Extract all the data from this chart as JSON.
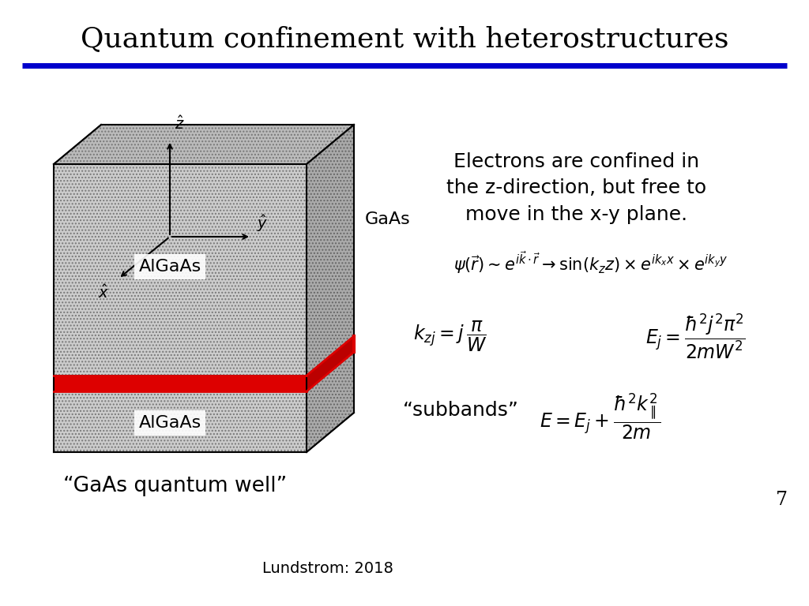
{
  "title": "Quantum confinement with heterostructures",
  "title_fontsize": 26,
  "blue_line_color": "#0000cc",
  "red_color": "#dd0000",
  "red_side_color": "#bb0000",
  "background_color": "#ffffff",
  "hatch_color": "#888888",
  "text_gaas": "GaAs",
  "text_algaas1": "AlGaAs",
  "text_algaas2": "AlGaAs",
  "text_quantum_well": "“GaAs quantum well”",
  "text_confined": "Electrons are confined in\nthe z-direction, but free to\nmove in the x-y plane.",
  "text_lundstrom": "Lundstrom: 2018",
  "page_number": "7",
  "text_subbands": "“subbands”"
}
